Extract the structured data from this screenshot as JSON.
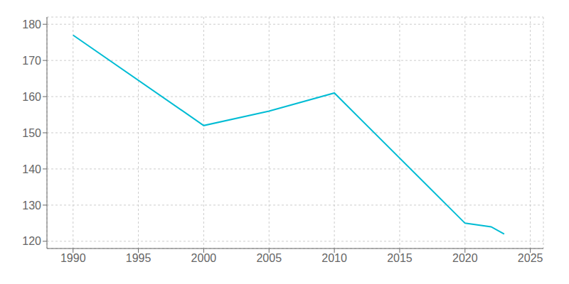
{
  "chart_data": {
    "type": "line",
    "x": [
      1990,
      2000,
      2005,
      2010,
      2020,
      2022,
      2023
    ],
    "values": [
      177,
      152,
      156,
      161,
      125,
      124,
      122
    ],
    "color": "#00bcd4",
    "xlim": [
      1988,
      2026
    ],
    "ylim": [
      118,
      182
    ],
    "xticks": [
      1990,
      1995,
      2000,
      2005,
      2010,
      2015,
      2020,
      2025
    ],
    "yticks": [
      120,
      130,
      140,
      150,
      160,
      170,
      180
    ],
    "grid": true
  }
}
